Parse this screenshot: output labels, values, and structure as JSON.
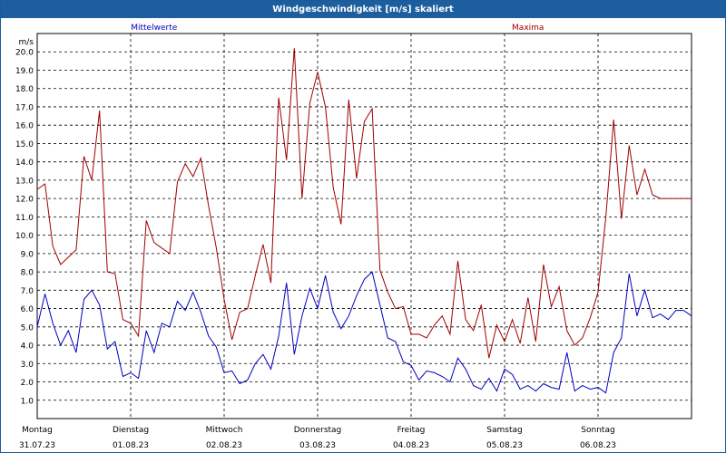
{
  "window": {
    "title": "Windgeschwindigkeit [m/s] skaliert"
  },
  "colors": {
    "titlebar": "#1d5e9f",
    "mean": "#0000c0",
    "max": "#a00000",
    "grid": "#000000"
  },
  "chart_data": {
    "type": "line",
    "title": "Windgeschwindigkeit [m/s] skaliert",
    "ylabel": "m/s",
    "ylim": [
      0,
      21
    ],
    "yticks": [
      "1.0",
      "2.0",
      "3.0",
      "4.0",
      "5.0",
      "6.0",
      "7.0",
      "8.0",
      "9.0",
      "10.0",
      "11.0",
      "12.0",
      "13.0",
      "14.0",
      "15.0",
      "16.0",
      "17.0",
      "18.0",
      "19.0",
      "20.0"
    ],
    "x_range_hours": [
      0,
      168
    ],
    "grid": "dashed",
    "days": [
      {
        "name": "Montag",
        "date": "31.07.23"
      },
      {
        "name": "Dienstag",
        "date": "01.08.23"
      },
      {
        "name": "Mittwoch",
        "date": "02.08.23"
      },
      {
        "name": "Donnerstag",
        "date": "03.08.23"
      },
      {
        "name": "Freitag",
        "date": "04.08.23"
      },
      {
        "name": "Samstag",
        "date": "05.08.23"
      },
      {
        "name": "Sonntag",
        "date": "06.08.23"
      }
    ],
    "series": [
      {
        "name": "Mittelwerte",
        "color": "#0000c0",
        "x": [
          0,
          2,
          4,
          6,
          8,
          10,
          12,
          14,
          16,
          18,
          20,
          22,
          24,
          26,
          28,
          30,
          32,
          34,
          36,
          38,
          40,
          42,
          44,
          46,
          48,
          50,
          52,
          54,
          56,
          58,
          60,
          62,
          64,
          66,
          68,
          70,
          72,
          74,
          76,
          78,
          80,
          82,
          84,
          86,
          88,
          90,
          92,
          94,
          96,
          98,
          100,
          102,
          104,
          106,
          108,
          110,
          112,
          114,
          116,
          118,
          120,
          122,
          124,
          126,
          128,
          130,
          132,
          134,
          136,
          138,
          140,
          142,
          144,
          146,
          148,
          150,
          152,
          154,
          156,
          158,
          160,
          162,
          164,
          166,
          168
        ],
        "y": [
          5.0,
          6.8,
          5.2,
          4.0,
          4.8,
          3.6,
          6.5,
          7.0,
          6.2,
          3.8,
          4.2,
          2.3,
          2.5,
          2.2,
          4.8,
          3.6,
          5.2,
          5.0,
          6.4,
          5.9,
          6.9,
          5.8,
          4.5,
          3.9,
          2.5,
          2.6,
          1.9,
          2.1,
          3.0,
          3.5,
          2.7,
          4.5,
          7.4,
          3.5,
          5.6,
          7.1,
          6.0,
          7.8,
          5.8,
          4.9,
          5.6,
          6.7,
          7.6,
          8.0,
          6.2,
          4.4,
          4.2,
          3.1,
          2.9,
          2.1,
          2.6,
          2.5,
          2.3,
          2.0,
          3.3,
          2.7,
          1.8,
          1.6,
          2.2,
          1.5,
          2.7,
          2.4,
          1.6,
          1.8,
          1.5,
          1.9,
          1.7,
          1.6,
          3.6,
          1.5,
          1.8,
          1.6,
          1.7,
          1.4,
          3.6,
          4.4,
          7.9,
          5.6,
          7.0,
          5.5,
          5.7,
          5.4,
          5.9,
          5.9,
          5.6
        ]
      },
      {
        "name": "Maxima",
        "color": "#a00000",
        "x": [
          0,
          2,
          4,
          6,
          8,
          10,
          12,
          14,
          16,
          18,
          20,
          22,
          24,
          26,
          28,
          30,
          32,
          34,
          36,
          38,
          40,
          42,
          44,
          46,
          48,
          50,
          52,
          54,
          56,
          58,
          60,
          62,
          64,
          66,
          68,
          70,
          72,
          74,
          76,
          78,
          80,
          82,
          84,
          86,
          88,
          90,
          92,
          94,
          96,
          98,
          100,
          102,
          104,
          106,
          108,
          110,
          112,
          114,
          116,
          118,
          120,
          122,
          124,
          126,
          128,
          130,
          132,
          134,
          136,
          138,
          140,
          142,
          144,
          146,
          148,
          150,
          152,
          154,
          156,
          158,
          160,
          162,
          164,
          166,
          168
        ],
        "y": [
          12.5,
          12.8,
          9.4,
          8.4,
          8.8,
          9.2,
          14.3,
          13.0,
          16.8,
          8.0,
          7.9,
          5.4,
          5.2,
          4.5,
          10.8,
          9.6,
          9.3,
          9.0,
          12.9,
          13.9,
          13.2,
          14.2,
          11.6,
          9.3,
          6.5,
          4.3,
          5.8,
          6.0,
          7.8,
          9.5,
          7.4,
          17.5,
          14.1,
          20.2,
          12.0,
          17.2,
          18.9,
          17.0,
          12.6,
          10.6,
          17.4,
          13.1,
          16.2,
          16.9,
          8.1,
          6.9,
          6.0,
          6.1,
          4.6,
          4.6,
          4.4,
          5.1,
          5.6,
          4.6,
          8.6,
          5.4,
          4.8,
          6.2,
          3.3,
          5.1,
          4.2,
          5.4,
          4.1,
          6.6,
          4.2,
          8.4,
          6.1,
          7.2,
          4.8,
          4.0,
          4.4,
          5.5,
          6.9,
          11.0,
          16.3,
          10.9,
          14.9,
          12.2,
          13.6,
          12.2,
          12.0,
          12.0,
          12.0,
          12.0,
          12.0
        ]
      }
    ]
  }
}
